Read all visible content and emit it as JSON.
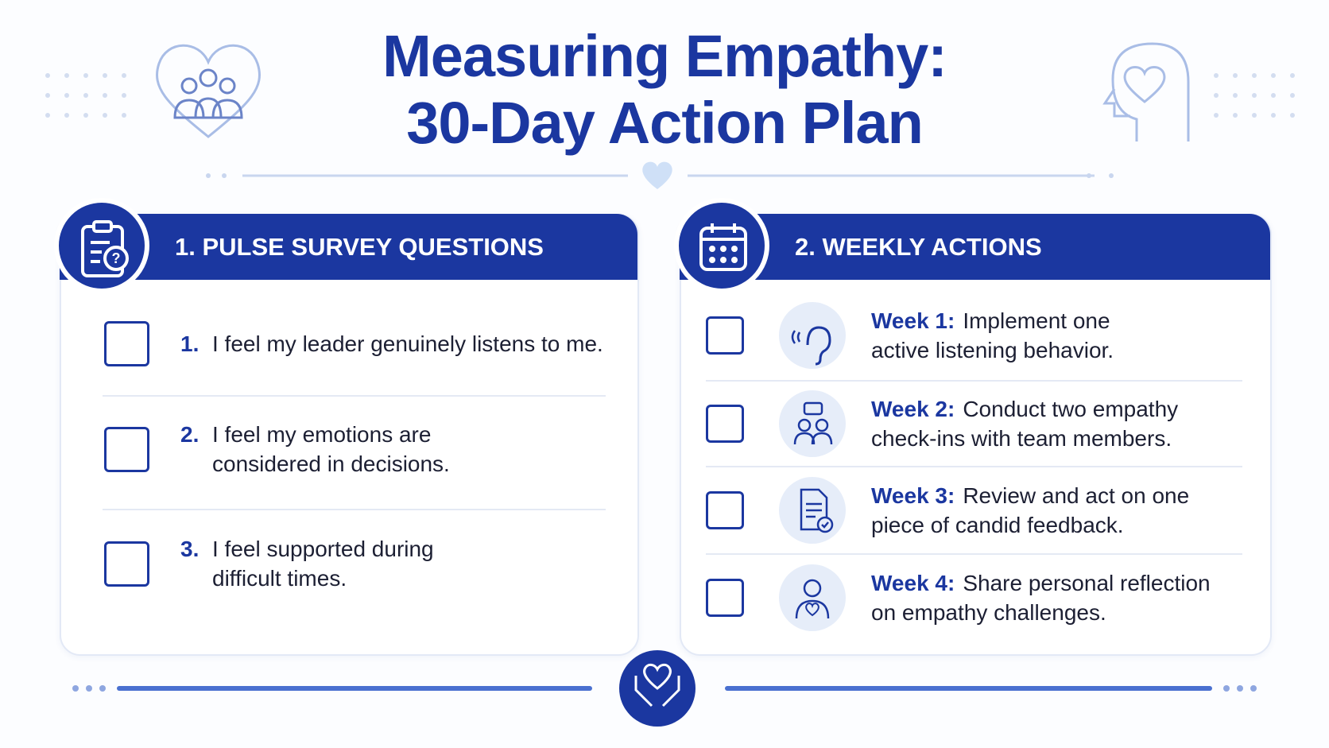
{
  "header": {
    "title_lines": [
      "Measuring Empathy:",
      "30-Day Action Plan"
    ]
  },
  "sections": [
    {
      "title": "1. PULSE SURVEY QUESTIONS",
      "items": [
        {
          "number": "1.",
          "lines": [
            "I feel my leader genuinely listens to me."
          ]
        },
        {
          "number": "2.",
          "lines": [
            "I feel my emotions are",
            "considered in decisions."
          ]
        },
        {
          "number": "3.",
          "lines": [
            "I feel supported during",
            "difficult times."
          ]
        }
      ]
    },
    {
      "title": "2. WEEKLY ACTIONS",
      "items": [
        {
          "label": "Week 1:",
          "lines": [
            "Implement one",
            "active listening behavior."
          ]
        },
        {
          "label": "Week 2:",
          "lines": [
            "Conduct two empathy",
            "check-ins with team members."
          ]
        },
        {
          "label": "Week 3:",
          "lines": [
            "Review and act on one",
            "piece of candid feedback."
          ]
        },
        {
          "label": "Week 4:",
          "lines": [
            "Share personal reflection",
            "on empathy challenges."
          ]
        }
      ]
    }
  ]
}
